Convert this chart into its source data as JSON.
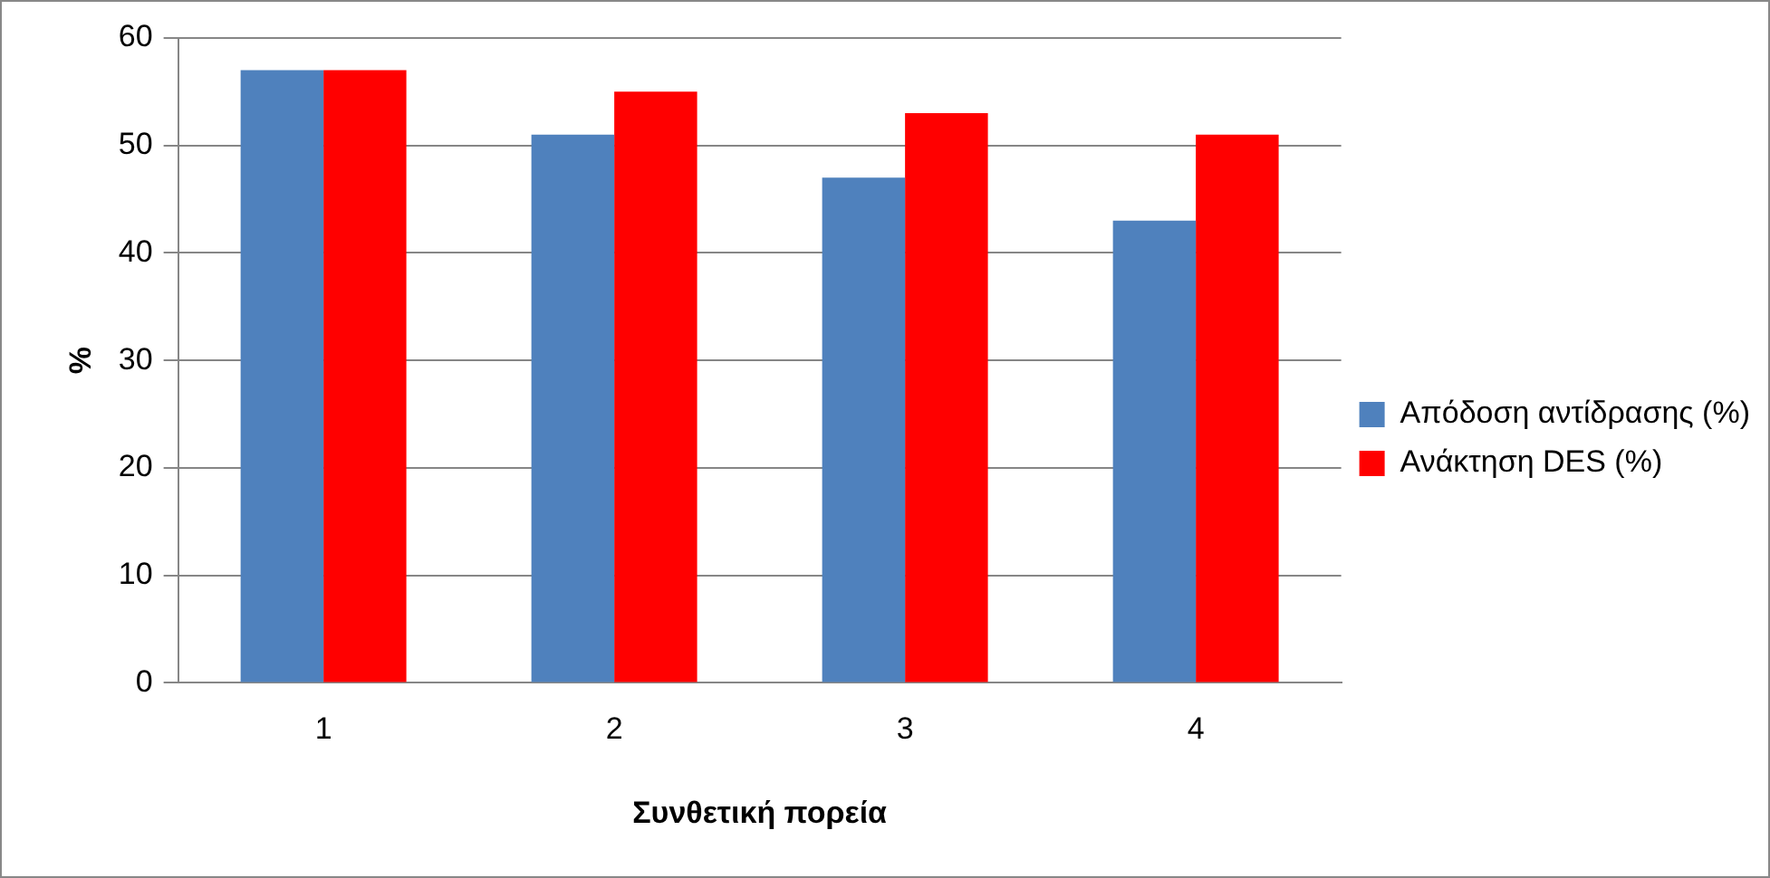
{
  "chart_data": {
    "type": "bar",
    "xlabel": "Συνθετική πορεία",
    "ylabel": "%",
    "categories": [
      "1",
      "2",
      "3",
      "4"
    ],
    "series": [
      {
        "name": "Απόδοση αντίδρασης (%)",
        "color": "#4f81bd",
        "values": [
          57,
          51,
          47,
          43
        ]
      },
      {
        "name": "Ανάκτηση DES (%)",
        "color": "#ff0000",
        "values": [
          57,
          55,
          53,
          51
        ]
      }
    ],
    "ylim": [
      0,
      60
    ],
    "yticks": [
      0,
      10,
      20,
      30,
      40,
      50,
      60
    ],
    "grid": "y",
    "legend": "right"
  }
}
